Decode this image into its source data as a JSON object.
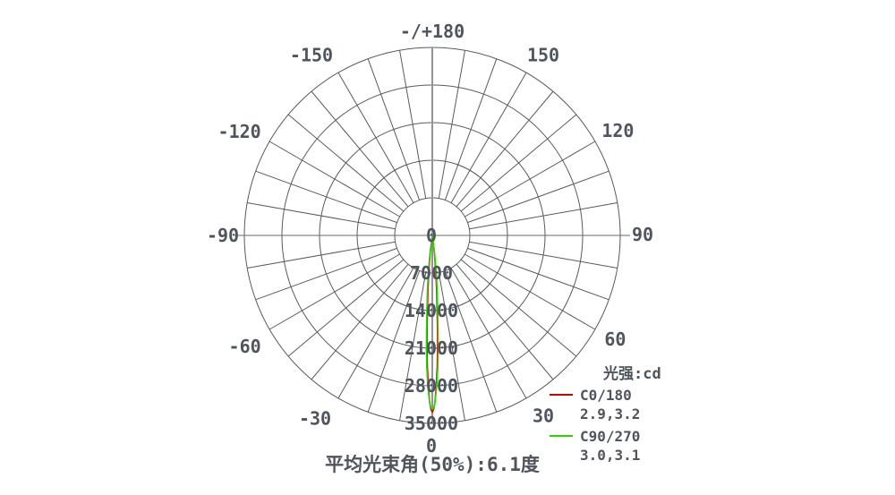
{
  "chart_data": {
    "type": "polar",
    "description": "Luminous intensity distribution curve (photometric polar diagram), 0 degrees at bottom",
    "caption": "平均光束角(50%):6.1度",
    "unit_label": "光强:cd",
    "top_axis_label": "-/+180",
    "angle_step_deg": 10,
    "radial_max": 35000,
    "radial_ticks": [
      0,
      7000,
      14000,
      21000,
      28000,
      35000
    ],
    "angle_labels": [
      {
        "angle": 180,
        "label": "-/+180"
      },
      {
        "angle": 150,
        "label": "150"
      },
      {
        "angle": 120,
        "label": "120"
      },
      {
        "angle": 90,
        "label": "90"
      },
      {
        "angle": 60,
        "label": "60"
      },
      {
        "angle": 30,
        "label": "30"
      },
      {
        "angle": 0,
        "label": "0"
      },
      {
        "angle": -30,
        "label": "-30"
      },
      {
        "angle": -60,
        "label": "-60"
      },
      {
        "angle": -90,
        "label": "-90"
      },
      {
        "angle": -120,
        "label": "-120"
      },
      {
        "angle": -150,
        "label": "-150"
      }
    ],
    "colors": {
      "grid": "#5a5a5a",
      "axis_horizontal": "#6a6a6a",
      "axis_vertical": "#919599",
      "text": "#4f555e"
    },
    "series": [
      {
        "name": "C0/180",
        "beam_angles": "2.9,3.2",
        "color": "#d40000",
        "peak_cd": 32900,
        "points": [
          [
            -9.2,
            0
          ],
          [
            -6.8,
            3200
          ],
          [
            -5.5,
            7000
          ],
          [
            -4.5,
            10500
          ],
          [
            -3.7,
            14000
          ],
          [
            -3.15,
            17500
          ],
          [
            -2.7,
            21000
          ],
          [
            -2.15,
            24500
          ],
          [
            -1.5,
            28000
          ],
          [
            -0.9,
            31200
          ],
          [
            -0.45,
            32400
          ],
          [
            0,
            32900
          ],
          [
            0.45,
            32400
          ],
          [
            0.9,
            31200
          ],
          [
            1.5,
            28000
          ],
          [
            2.15,
            24500
          ],
          [
            2.7,
            21000
          ],
          [
            3.15,
            17500
          ],
          [
            3.7,
            14000
          ],
          [
            4.5,
            10500
          ],
          [
            5.5,
            7000
          ],
          [
            6.8,
            3200
          ],
          [
            9.2,
            0
          ]
        ]
      },
      {
        "name": "C90/270",
        "beam_angles": "3.0,3.1",
        "color": "#2bd400",
        "peak_cd": 32400,
        "points": [
          [
            -10,
            0
          ],
          [
            -7.5,
            3200
          ],
          [
            -6.1,
            7000
          ],
          [
            -5.0,
            10500
          ],
          [
            -4.1,
            14000
          ],
          [
            -3.5,
            17500
          ],
          [
            -3.0,
            21000
          ],
          [
            -2.4,
            24500
          ],
          [
            -1.7,
            28000
          ],
          [
            -1.0,
            30900
          ],
          [
            -0.5,
            32000
          ],
          [
            0,
            32400
          ],
          [
            0.5,
            32000
          ],
          [
            1.0,
            30900
          ],
          [
            1.7,
            28000
          ],
          [
            2.4,
            24500
          ],
          [
            3.0,
            21000
          ],
          [
            3.5,
            17500
          ],
          [
            4.1,
            14000
          ],
          [
            5.0,
            10500
          ],
          [
            6.1,
            7000
          ],
          [
            7.5,
            3200
          ],
          [
            10,
            0
          ]
        ]
      }
    ]
  },
  "legend": {
    "title": "光强:cd"
  }
}
